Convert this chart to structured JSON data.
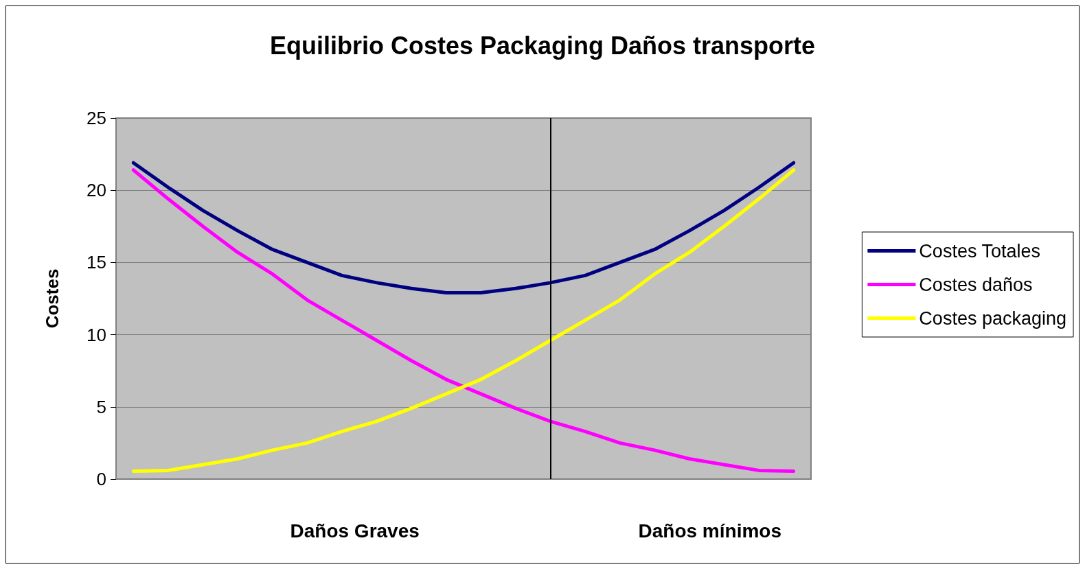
{
  "chart_data": {
    "type": "line",
    "title": "Equilibrio Costes Packaging Daños transporte",
    "ylabel": "Costes",
    "categories": [
      null,
      null,
      null,
      null,
      null,
      null,
      null,
      null,
      null,
      null,
      null,
      null,
      null,
      null,
      null,
      null,
      null,
      null,
      null,
      null
    ],
    "series": [
      {
        "name": "Costes Totales",
        "color": "#000080",
        "values": [
          21.9,
          20.2,
          18.6,
          17.2,
          15.9,
          15.0,
          14.1,
          13.6,
          13.2,
          12.9,
          12.9,
          13.2,
          13.6,
          14.1,
          15.0,
          15.9,
          17.2,
          18.6,
          20.2,
          21.9
        ]
      },
      {
        "name": "Costes daños",
        "color": "#ff00ff",
        "values": [
          21.4,
          19.4,
          17.5,
          15.7,
          14.2,
          12.4,
          11.0,
          9.6,
          8.2,
          6.9,
          5.9,
          4.9,
          4.0,
          3.3,
          2.5,
          2.0,
          1.4,
          1.0,
          0.6,
          0.55
        ]
      },
      {
        "name": "Costes packaging",
        "color": "#ffff00",
        "values": [
          0.55,
          0.6,
          1.0,
          1.4,
          2.0,
          2.5,
          3.3,
          4.0,
          4.9,
          5.9,
          6.9,
          8.2,
          9.6,
          11.0,
          12.4,
          14.2,
          15.7,
          17.5,
          19.4,
          21.4
        ]
      }
    ],
    "ylim": [
      0,
      25
    ],
    "yticks": [
      0,
      5,
      10,
      15,
      20,
      25
    ],
    "annotations": [
      "Daños Graves",
      "Daños mínimos"
    ],
    "grid": "y",
    "legend": "right",
    "tick_labels": "y",
    "marker": "none",
    "line_style": "solid"
  }
}
